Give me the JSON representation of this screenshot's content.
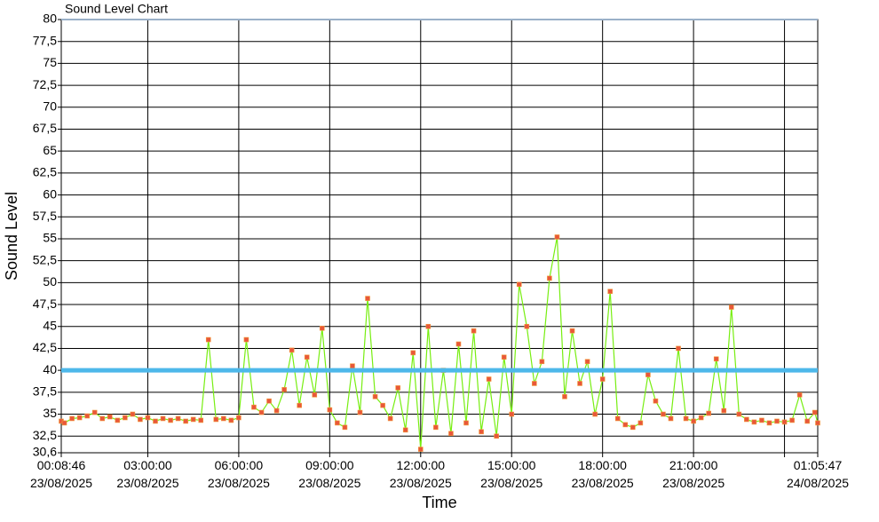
{
  "chart_data": {
    "type": "line",
    "title": "Sound Level Chart",
    "x_label": "Time",
    "y_label": "Sound Level",
    "xlim": [
      "2025-08-23T00:08:46",
      "2025-08-24T01:05:47"
    ],
    "xticks": [
      {
        "value": "2025-08-23T00:08:46",
        "label": "00:08:46\n23/08/2025"
      },
      {
        "value": "2025-08-23T03:00:00",
        "label": "03:00:00\n23/08/2025"
      },
      {
        "value": "2025-08-23T06:00:00",
        "label": "06:00:00\n23/08/2025"
      },
      {
        "value": "2025-08-23T09:00:00",
        "label": "09:00:00\n23/08/2025"
      },
      {
        "value": "2025-08-23T12:00:00",
        "label": "12:00:00\n23/08/2025"
      },
      {
        "value": "2025-08-23T15:00:00",
        "label": "15:00:00\n23/08/2025"
      },
      {
        "value": "2025-08-23T18:00:00",
        "label": "18:00:00\n23/08/2025"
      },
      {
        "value": "2025-08-23T21:00:00",
        "label": "21:00:00\n23/08/2025"
      },
      {
        "value": "2025-08-24T00:00:00",
        "label": null
      },
      {
        "value": "2025-08-24T01:05:47",
        "label": "01:05:47\n24/08/2025"
      }
    ],
    "ylim": [
      30.6,
      80
    ],
    "yticks": [
      {
        "value": 30.6,
        "label": "30,6"
      },
      {
        "value": 32.5,
        "label": "32,5"
      },
      35,
      {
        "value": 37.5,
        "label": "37,5"
      },
      40,
      {
        "value": 42.5,
        "label": "42,5"
      },
      45,
      {
        "value": 47.5,
        "label": "47,5"
      },
      50,
      {
        "value": 52.5,
        "label": "52,5"
      },
      55,
      {
        "value": 57.5,
        "label": "57,5"
      },
      60,
      {
        "value": 62.5,
        "label": "62,5"
      },
      65,
      {
        "value": 67.5,
        "label": "67,5"
      },
      70,
      {
        "value": 72.5,
        "label": "72,5"
      },
      75,
      {
        "value": 77.5,
        "label": "77,5"
      },
      80
    ],
    "grid": true,
    "threshold": {
      "value": 40,
      "color": "#4db8ea"
    },
    "x": [
      "2025-08-23T00:08:46",
      "2025-08-23T00:15:00",
      "2025-08-23T00:30:00",
      "2025-08-23T00:45:00",
      "2025-08-23T01:00:00",
      "2025-08-23T01:15:00",
      "2025-08-23T01:30:00",
      "2025-08-23T01:45:00",
      "2025-08-23T02:00:00",
      "2025-08-23T02:15:00",
      "2025-08-23T02:30:00",
      "2025-08-23T02:45:00",
      "2025-08-23T03:00:00",
      "2025-08-23T03:15:00",
      "2025-08-23T03:30:00",
      "2025-08-23T03:45:00",
      "2025-08-23T04:00:00",
      "2025-08-23T04:15:00",
      "2025-08-23T04:30:00",
      "2025-08-23T04:45:00",
      "2025-08-23T05:00:00",
      "2025-08-23T05:15:00",
      "2025-08-23T05:30:00",
      "2025-08-23T05:45:00",
      "2025-08-23T06:00:00",
      "2025-08-23T06:15:00",
      "2025-08-23T06:30:00",
      "2025-08-23T06:45:00",
      "2025-08-23T07:00:00",
      "2025-08-23T07:15:00",
      "2025-08-23T07:30:00",
      "2025-08-23T07:45:00",
      "2025-08-23T08:00:00",
      "2025-08-23T08:15:00",
      "2025-08-23T08:30:00",
      "2025-08-23T08:45:00",
      "2025-08-23T09:00:00",
      "2025-08-23T09:15:00",
      "2025-08-23T09:30:00",
      "2025-08-23T09:45:00",
      "2025-08-23T10:00:00",
      "2025-08-23T10:15:00",
      "2025-08-23T10:30:00",
      "2025-08-23T10:45:00",
      "2025-08-23T11:00:00",
      "2025-08-23T11:15:00",
      "2025-08-23T11:30:00",
      "2025-08-23T11:45:00",
      "2025-08-23T12:00:00",
      "2025-08-23T12:15:00",
      "2025-08-23T12:30:00",
      "2025-08-23T12:45:00",
      "2025-08-23T13:00:00",
      "2025-08-23T13:15:00",
      "2025-08-23T13:30:00",
      "2025-08-23T13:45:00",
      "2025-08-23T14:00:00",
      "2025-08-23T14:15:00",
      "2025-08-23T14:30:00",
      "2025-08-23T14:45:00",
      "2025-08-23T15:00:00",
      "2025-08-23T15:15:00",
      "2025-08-23T15:30:00",
      "2025-08-23T15:45:00",
      "2025-08-23T16:00:00",
      "2025-08-23T16:15:00",
      "2025-08-23T16:30:00",
      "2025-08-23T16:45:00",
      "2025-08-23T17:00:00",
      "2025-08-23T17:15:00",
      "2025-08-23T17:30:00",
      "2025-08-23T17:45:00",
      "2025-08-23T18:00:00",
      "2025-08-23T18:15:00",
      "2025-08-23T18:30:00",
      "2025-08-23T18:45:00",
      "2025-08-23T19:00:00",
      "2025-08-23T19:15:00",
      "2025-08-23T19:30:00",
      "2025-08-23T19:45:00",
      "2025-08-23T20:00:00",
      "2025-08-23T20:15:00",
      "2025-08-23T20:30:00",
      "2025-08-23T20:45:00",
      "2025-08-23T21:00:00",
      "2025-08-23T21:15:00",
      "2025-08-23T21:30:00",
      "2025-08-23T21:45:00",
      "2025-08-23T22:00:00",
      "2025-08-23T22:15:00",
      "2025-08-23T22:30:00",
      "2025-08-23T22:45:00",
      "2025-08-23T23:00:00",
      "2025-08-23T23:15:00",
      "2025-08-23T23:30:00",
      "2025-08-23T23:45:00",
      "2025-08-24T00:00:00",
      "2025-08-24T00:15:00",
      "2025-08-24T00:30:00",
      "2025-08-24T00:45:00",
      "2025-08-24T01:00:00",
      "2025-08-24T01:05:47"
    ],
    "series": [
      {
        "color": "#77ee11",
        "marker_color": "#e8573a",
        "values": [
          34.2,
          34,
          34.5,
          34.6,
          34.8,
          35.2,
          34.5,
          34.7,
          34.3,
          34.6,
          35,
          34.4,
          34.6,
          34.2,
          34.5,
          34.3,
          34.5,
          34.2,
          34.4,
          34.3,
          43.5,
          34.4,
          34.5,
          34.3,
          34.6,
          43.5,
          35.8,
          35.2,
          36.5,
          35.4,
          37.8,
          42.3,
          36,
          41.5,
          37.2,
          44.8,
          35.5,
          34,
          33.5,
          40.5,
          35.2,
          48.2,
          37,
          36,
          34.5,
          38,
          33.2,
          42,
          31,
          45,
          33.5,
          40,
          32.8,
          43,
          34,
          44.5,
          33,
          39,
          32.5,
          41.5,
          35,
          49.8,
          45,
          38.5,
          41,
          50.5,
          55.2,
          37,
          44.5,
          38.5,
          41,
          35,
          39,
          49,
          34.5,
          33.8,
          33.5,
          34,
          39.5,
          36.5,
          35,
          34.5,
          42.5,
          34.5,
          34.2,
          34.6,
          35.1,
          41.3,
          35.4,
          47.2,
          35,
          34.4,
          34.1,
          34.3,
          34,
          34.2,
          34.1,
          34.3,
          37.2,
          34.2,
          35.2,
          34
        ]
      }
    ]
  }
}
